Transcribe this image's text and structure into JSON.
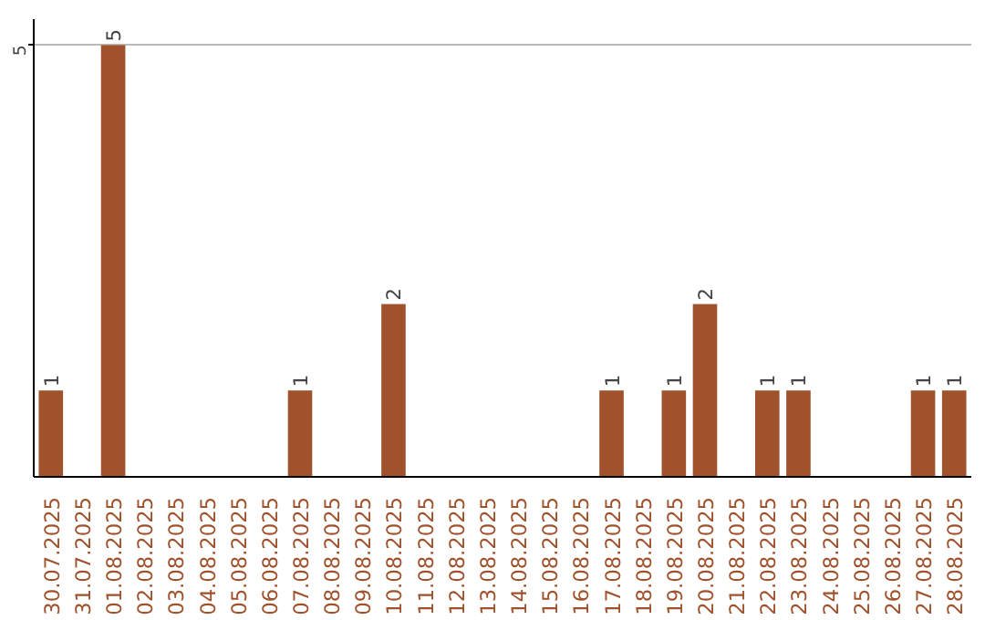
{
  "chart_data": {
    "type": "bar",
    "categories": [
      "30.07.2025",
      "31.07.2025",
      "01.08.2025",
      "02.08.2025",
      "03.08.2025",
      "04.08.2025",
      "05.08.2025",
      "06.08.2025",
      "07.08.2025",
      "08.08.2025",
      "09.08.2025",
      "10.08.2025",
      "11.08.2025",
      "12.08.2025",
      "13.08.2025",
      "14.08.2025",
      "15.08.2025",
      "16.08.2025",
      "17.08.2025",
      "18.08.2025",
      "19.08.2025",
      "20.08.2025",
      "21.08.2025",
      "22.08.2025",
      "23.08.2025",
      "24.08.2025",
      "25.08.2025",
      "26.08.2025",
      "27.08.2025",
      "28.08.2025"
    ],
    "values": [
      1,
      0,
      5,
      0,
      0,
      0,
      0,
      0,
      1,
      0,
      0,
      2,
      0,
      0,
      0,
      0,
      0,
      0,
      1,
      0,
      1,
      2,
      0,
      1,
      1,
      0,
      0,
      0,
      1,
      1
    ],
    "value_labels": [
      "1",
      null,
      "5",
      null,
      null,
      null,
      null,
      null,
      "1",
      null,
      null,
      "2",
      null,
      null,
      null,
      null,
      null,
      null,
      "1",
      null,
      "1",
      "2",
      null,
      "1",
      "1",
      null,
      null,
      null,
      "1",
      "1"
    ],
    "color": "#a0522d",
    "ylim": [
      0,
      5.3
    ],
    "yticks": [
      5
    ],
    "grid": "y"
  }
}
